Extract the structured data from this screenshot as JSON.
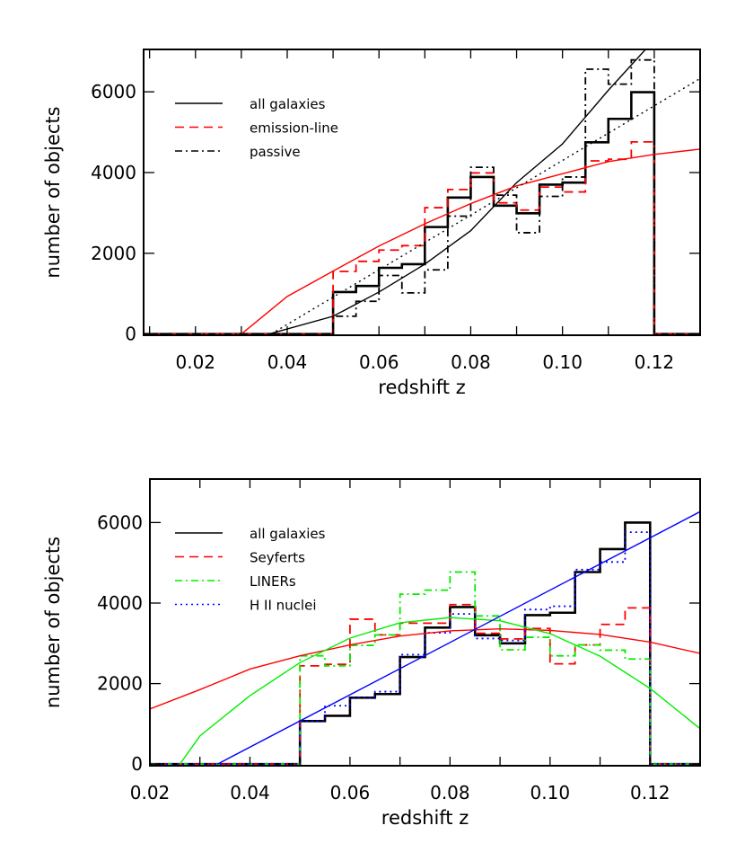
{
  "chart_data": [
    {
      "type": "histogram",
      "xlabel": "redshift z",
      "ylabel": "number of objects",
      "xlim": [
        0.0087,
        0.13
      ],
      "ylim": [
        -30,
        7050
      ],
      "xticks": [
        "0.02",
        "0.04",
        "0.06",
        "0.08",
        "0.10",
        "0.12"
      ],
      "xtick_values": [
        0.02,
        0.04,
        0.06,
        0.08,
        0.1,
        0.12
      ],
      "yticks": [
        "0",
        "2000",
        "4000",
        "6000"
      ],
      "ytick_values": [
        0,
        2000,
        4000,
        6000
      ],
      "legend_position": "top-left",
      "bin_edges": [
        0.05,
        0.055,
        0.06,
        0.065,
        0.07,
        0.075,
        0.08,
        0.085,
        0.09,
        0.095,
        0.1,
        0.105,
        0.11,
        0.115,
        0.12
      ],
      "series": [
        {
          "name": "all galaxies",
          "style": "solid-thick",
          "color": "#000000",
          "values": [
            1040,
            1190,
            1640,
            1730,
            2650,
            3380,
            3890,
            3180,
            2990,
            3700,
            3750,
            4750,
            5330,
            5990
          ]
        },
        {
          "name": "emission-line",
          "style": "dashed",
          "color": "#ff0000",
          "values": [
            1550,
            1800,
            2080,
            2190,
            3130,
            3580,
            3990,
            3250,
            3070,
            3640,
            3520,
            4290,
            4330,
            4760
          ]
        },
        {
          "name": "passive",
          "style": "dashdot",
          "color": "#000000",
          "values": [
            440,
            810,
            1450,
            1020,
            1590,
            2920,
            4130,
            3440,
            2510,
            3410,
            3890,
            6560,
            6190,
            6790
          ]
        }
      ],
      "fits": [
        {
          "style": "solid",
          "color": "#000000",
          "points": [
            [
              0.036,
              0
            ],
            [
              0.05,
              440
            ],
            [
              0.06,
              1040
            ],
            [
              0.07,
              1730
            ],
            [
              0.08,
              2560
            ],
            [
              0.09,
              3750
            ],
            [
              0.1,
              4710
            ],
            [
              0.11,
              6040
            ],
            [
              0.1185,
              7100
            ]
          ]
        },
        {
          "style": "solid",
          "color": "#ff0000",
          "points": [
            [
              0.03,
              0
            ],
            [
              0.04,
              930
            ],
            [
              0.05,
              1560
            ],
            [
              0.06,
              2180
            ],
            [
              0.07,
              2730
            ],
            [
              0.08,
              3230
            ],
            [
              0.09,
              3670
            ],
            [
              0.1,
              3970
            ],
            [
              0.11,
              4270
            ],
            [
              0.12,
              4450
            ],
            [
              0.13,
              4580
            ]
          ]
        },
        {
          "style": "dotted",
          "color": "#000000",
          "points": [
            [
              0.0365,
              0
            ],
            [
              0.13,
              6330
            ]
          ]
        }
      ]
    },
    {
      "type": "histogram",
      "xlabel": "redshift z",
      "ylabel": "number of objects",
      "xlim": [
        0.02,
        0.13
      ],
      "ylim": [
        -40,
        7080
      ],
      "xticks": [
        "0.02",
        "0.04",
        "0.06",
        "0.08",
        "0.10",
        "0.12"
      ],
      "xtick_values": [
        0.02,
        0.04,
        0.06,
        0.08,
        0.1,
        0.12
      ],
      "yticks": [
        "0",
        "2000",
        "4000",
        "6000"
      ],
      "ytick_values": [
        0,
        2000,
        4000,
        6000
      ],
      "legend_position": "top-left",
      "bin_edges": [
        0.05,
        0.055,
        0.06,
        0.065,
        0.07,
        0.075,
        0.08,
        0.085,
        0.09,
        0.095,
        0.1,
        0.105,
        0.11,
        0.115,
        0.12
      ],
      "series": [
        {
          "name": "all galaxies",
          "style": "solid-thick",
          "color": "#000000",
          "values": [
            1070,
            1200,
            1650,
            1740,
            2660,
            3390,
            3900,
            3200,
            3000,
            3700,
            3760,
            4770,
            5340,
            6000
          ]
        },
        {
          "name": "Seyferts",
          "style": "dashed",
          "color": "#ff0000",
          "values": [
            2440,
            2480,
            3600,
            3210,
            3500,
            3500,
            3960,
            3250,
            3110,
            3370,
            2490,
            2960,
            3470,
            3880
          ]
        },
        {
          "name": "LINERs",
          "style": "dashdot",
          "color": "#00ee00",
          "values": [
            2690,
            2440,
            2950,
            3210,
            4220,
            4320,
            4770,
            3680,
            2840,
            3150,
            2690,
            2960,
            2830,
            2610
          ]
        },
        {
          "name": "H II nuclei",
          "style": "dotted",
          "color": "#0000ff",
          "values": [
            1070,
            1450,
            1650,
            1800,
            2720,
            3260,
            3730,
            3120,
            3070,
            3840,
            3920,
            4830,
            5020,
            5760
          ]
        }
      ],
      "fits": [
        {
          "style": "solid",
          "color": "#ff0000",
          "points": [
            [
              0.02,
              1370
            ],
            [
              0.03,
              1850
            ],
            [
              0.04,
              2360
            ],
            [
              0.05,
              2690
            ],
            [
              0.06,
              2960
            ],
            [
              0.07,
              3180
            ],
            [
              0.08,
              3310
            ],
            [
              0.09,
              3360
            ],
            [
              0.1,
              3320
            ],
            [
              0.11,
              3220
            ],
            [
              0.12,
              3030
            ],
            [
              0.13,
              2750
            ]
          ]
        },
        {
          "style": "solid",
          "color": "#00ee00",
          "points": [
            [
              0.026,
              0
            ],
            [
              0.03,
              700
            ],
            [
              0.04,
              1700
            ],
            [
              0.05,
              2520
            ],
            [
              0.06,
              3130
            ],
            [
              0.07,
              3510
            ],
            [
              0.08,
              3640
            ],
            [
              0.09,
              3560
            ],
            [
              0.1,
              3240
            ],
            [
              0.11,
              2680
            ],
            [
              0.12,
              1880
            ],
            [
              0.13,
              880
            ]
          ]
        },
        {
          "style": "solid",
          "color": "#0000ff",
          "points": [
            [
              0.0335,
              0
            ],
            [
              0.13,
              6270
            ]
          ]
        }
      ]
    }
  ]
}
